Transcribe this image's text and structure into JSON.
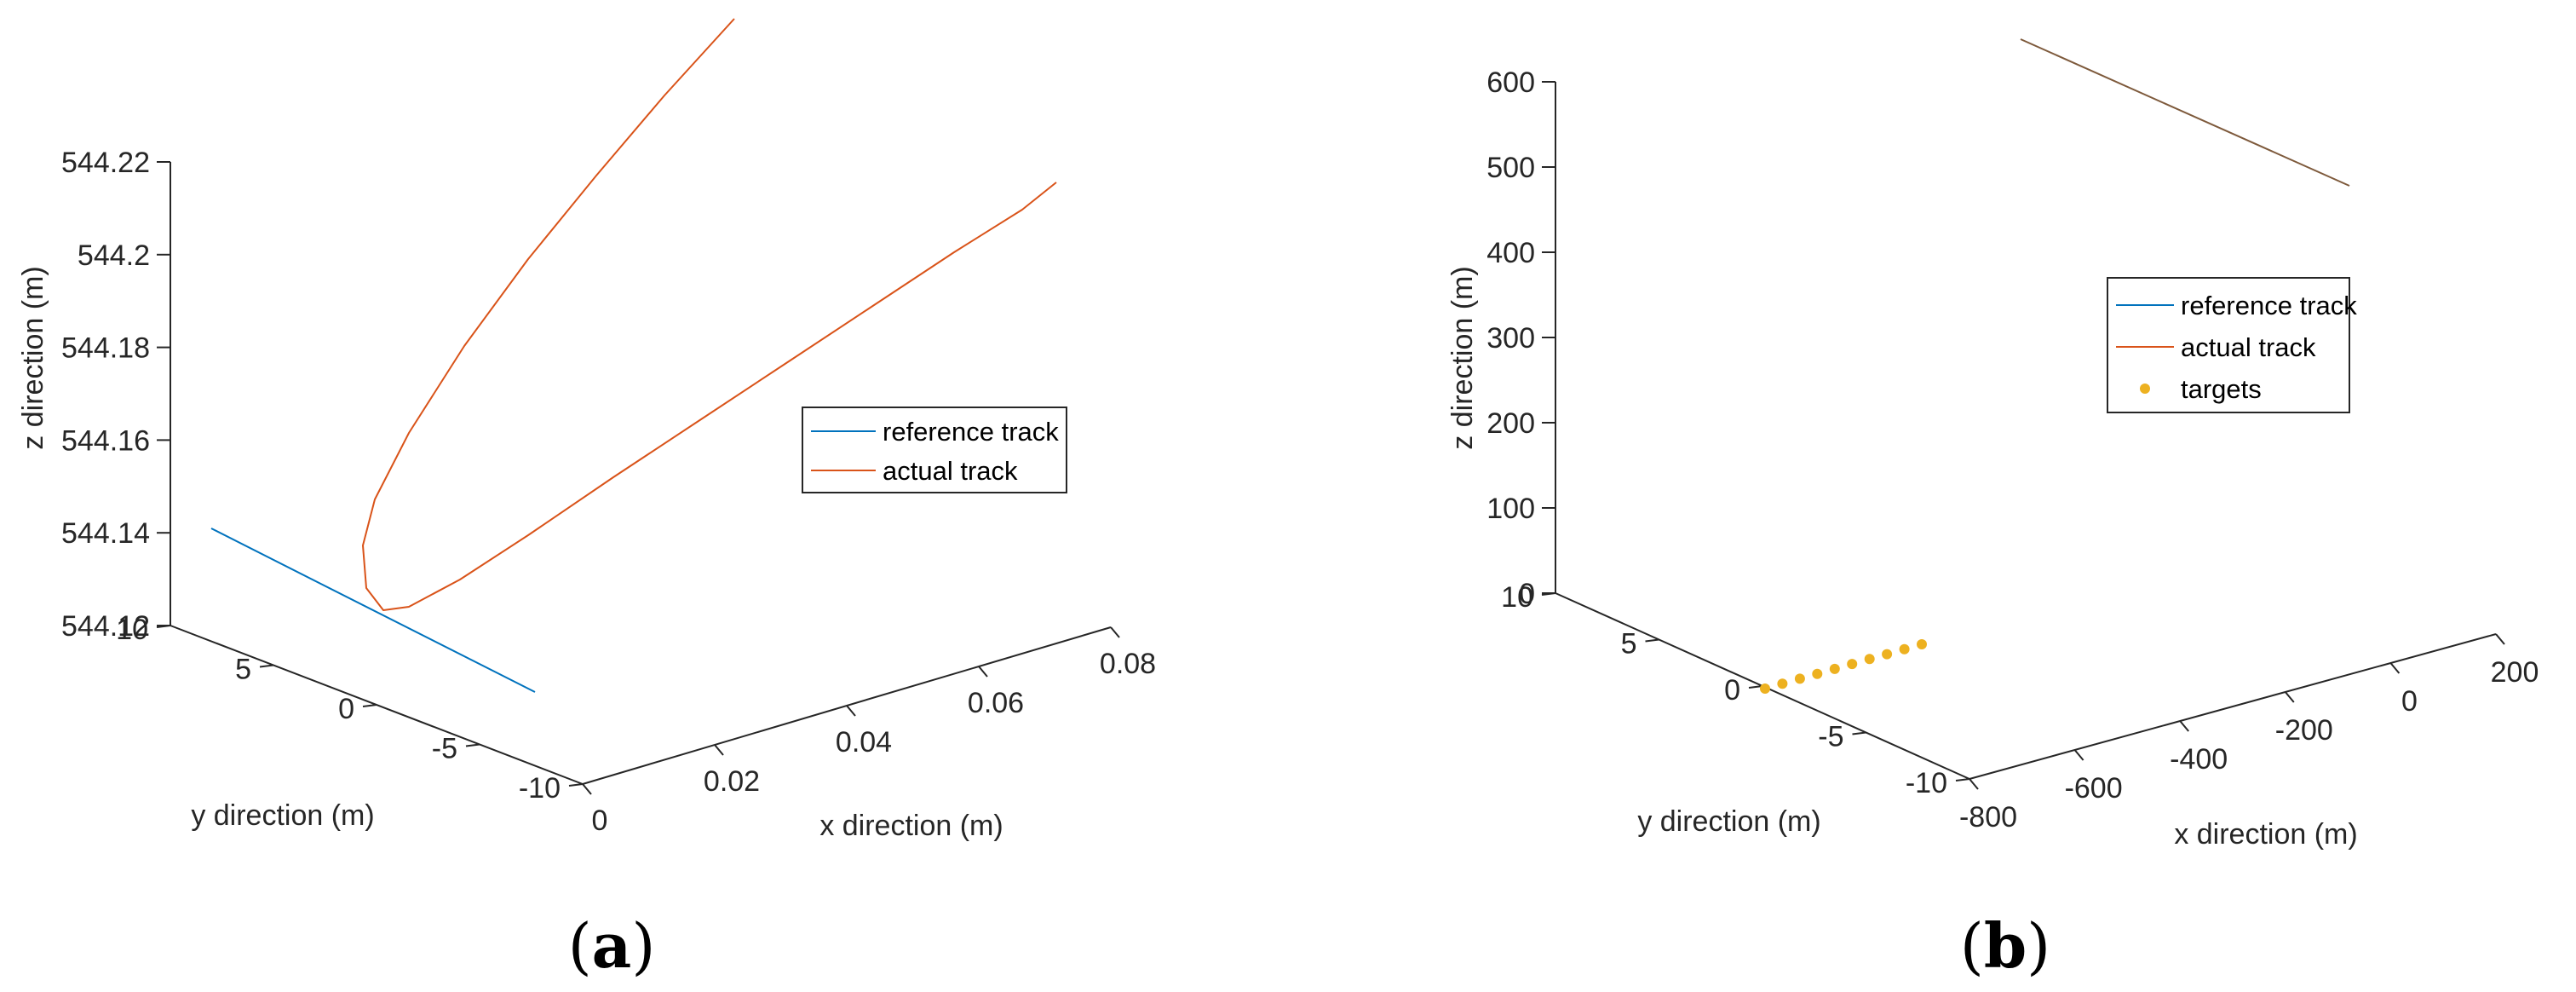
{
  "colors": {
    "reference": "#0072BD",
    "actual": "#D95319",
    "targets": "#EDB120",
    "axis": "#262626",
    "link_line": "#7E5A3C"
  },
  "chart_data": [
    {
      "panel": "a",
      "panel_label": "a",
      "type": "line",
      "dimensions": 3,
      "xlabel": "x direction (m)",
      "ylabel": "y direction (m)",
      "zlabel": "z direction (m)",
      "xlim": [
        0,
        0.08
      ],
      "ylim": [
        -10,
        10
      ],
      "zlim": [
        544.12,
        544.22
      ],
      "xticks": [
        "0",
        "0.02",
        "0.04",
        "0.06",
        "0.08"
      ],
      "yticks": [
        "10",
        "5",
        "0",
        "-5",
        "-10"
      ],
      "zticks": [
        "544.12",
        "544.14",
        "544.16",
        "544.18",
        "544.2",
        "544.22"
      ],
      "grid": false,
      "legend_position": "right",
      "series": [
        {
          "name": "reference track",
          "points": [
            [
              0,
              10,
              544.12
            ],
            [
              0,
              -10,
              544.12
            ]
          ]
        },
        {
          "name": "actual track",
          "points": [
            [
              0.026,
              -8.9,
              544.221
            ],
            [
              0.0205,
              -7.6,
              544.204
            ],
            [
              0.0155,
              -6.3,
              544.186
            ],
            [
              0.0108,
              -4.9,
              544.167
            ],
            [
              0.0068,
              -3.5,
              544.148
            ],
            [
              0.0037,
              -2.0,
              544.133
            ],
            [
              0.0018,
              -0.6,
              544.124
            ],
            [
              0.0014,
              0.0,
              544.121
            ],
            [
              0.0019,
              0.6,
              544.12
            ],
            [
              0.004,
              1.2,
              544.121
            ],
            [
              0.0085,
              1.7,
              544.124
            ],
            [
              0.015,
              2.1,
              544.129
            ],
            [
              0.023,
              2.4,
              544.136
            ],
            [
              0.032,
              2.6,
              544.144
            ],
            [
              0.042,
              2.7,
              544.153
            ],
            [
              0.052,
              2.9,
              544.162
            ],
            [
              0.062,
              3.0,
              544.172
            ],
            [
              0.07,
              3.1,
              544.178
            ]
          ]
        }
      ]
    },
    {
      "panel": "b",
      "panel_label": "b",
      "type": "scatter",
      "dimensions": 3,
      "xlabel": "x direction (m)",
      "ylabel": "y direction (m)",
      "zlabel": "z direction (m)",
      "xlim": [
        -800,
        200
      ],
      "ylim": [
        -10,
        10
      ],
      "zlim": [
        0,
        600
      ],
      "xticks": [
        "-800",
        "-600",
        "-400",
        "-200",
        "0",
        "200"
      ],
      "yticks": [
        "10",
        "5",
        "0",
        "-5",
        "-10"
      ],
      "zticks": [
        "0",
        "100",
        "200",
        "300",
        "400",
        "500",
        "600"
      ],
      "grid": false,
      "legend_position": "right",
      "series": [
        {
          "name": "reference track",
          "points": [
            [
              -800,
              0,
              600
            ],
            [
              -400,
              0,
              500
            ]
          ]
        },
        {
          "name": "actual track",
          "points": [
            [
              -800,
              0,
              600
            ],
            [
              -400,
              0,
              500
            ]
          ]
        },
        {
          "name": "targets",
          "points": [
            [
              -800,
              0,
              0
            ],
            [
              -780,
              0,
              0
            ],
            [
              -760,
              0,
              0
            ],
            [
              -740,
              0,
              0
            ],
            [
              -720,
              0,
              0
            ],
            [
              -700,
              0,
              0
            ],
            [
              -680,
              0,
              0
            ],
            [
              -660,
              0,
              0
            ],
            [
              -640,
              0,
              0
            ],
            [
              -620,
              0,
              0
            ]
          ]
        }
      ]
    }
  ]
}
